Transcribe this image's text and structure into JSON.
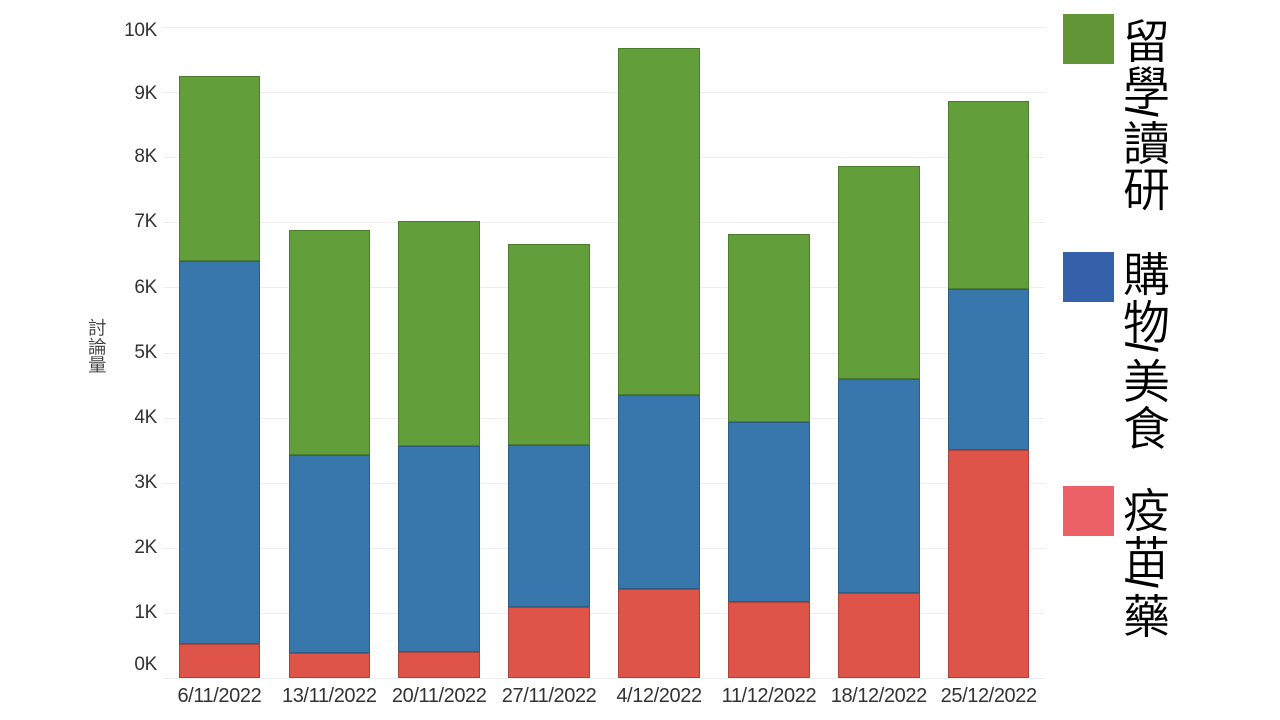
{
  "chart_data": {
    "type": "bar",
    "stacked": true,
    "title": "",
    "xlabel": "",
    "ylabel": "討論量",
    "categories": [
      "6/11/2022",
      "13/11/2022",
      "20/11/2022",
      "27/11/2022",
      "4/12/2022",
      "11/12/2022",
      "18/12/2022",
      "25/12/2022"
    ],
    "series": [
      {
        "name": "疫苗/藥",
        "color": "#de5449",
        "legend_color": "#ec6168",
        "values": [
          0.52,
          0.38,
          0.4,
          1.09,
          1.37,
          1.16,
          1.3,
          3.5
        ]
      },
      {
        "name": "購物/美食",
        "color": "#3877ab",
        "legend_color": "#3561aa",
        "values": [
          5.89,
          3.04,
          3.16,
          2.49,
          2.98,
          2.78,
          3.3,
          2.47
        ]
      },
      {
        "name": "留學/讀研",
        "color": "#629f3a",
        "legend_color": "#629536",
        "values": [
          2.84,
          3.46,
          3.46,
          3.08,
          5.33,
          2.88,
          3.26,
          2.9
        ]
      }
    ],
    "unit": "K",
    "ylim": [
      0,
      10
    ],
    "ytick_labels": [
      "0K",
      "1K",
      "2K",
      "3K",
      "4K",
      "5K",
      "6K",
      "7K",
      "8K",
      "9K",
      "10K"
    ],
    "grid": true,
    "legend_position": "right"
  },
  "legend": {
    "items": [
      {
        "label": "留學/讀研",
        "color": "#629536"
      },
      {
        "label": "購物/美食",
        "color": "#3561aa"
      },
      {
        "label": "疫苗/藥",
        "color": "#ec6168"
      }
    ]
  },
  "colors": {
    "background": "#ffffff",
    "gridline": "#ededed",
    "axis_text": "#333333",
    "legend_text": "#000000"
  }
}
